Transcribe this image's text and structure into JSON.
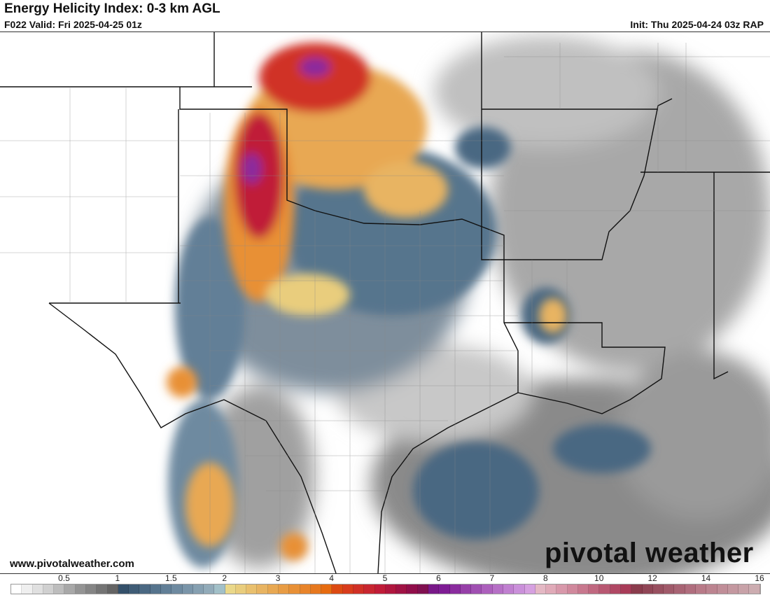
{
  "header": {
    "title": "Energy Helicity Index: 0-3 km AGL",
    "valid": "F022 Valid: Fri 2025-04-25 01z",
    "init": "Init: Thu 2025-04-24 03z RAP"
  },
  "footer": {
    "website": "www.pivotalweather.com",
    "logo": "pivotal weather"
  },
  "colorbar": {
    "ticks": [
      {
        "value": 0.5,
        "label": "0.5"
      },
      {
        "value": 1,
        "label": "1"
      },
      {
        "value": 1.5,
        "label": "1.5"
      },
      {
        "value": 2,
        "label": "2"
      },
      {
        "value": 3,
        "label": "3"
      },
      {
        "value": 4,
        "label": "4"
      },
      {
        "value": 5,
        "label": "5"
      },
      {
        "value": 6,
        "label": "6"
      },
      {
        "value": 7,
        "label": "7"
      },
      {
        "value": 8,
        "label": "8"
      },
      {
        "value": 10,
        "label": "10"
      },
      {
        "value": 12,
        "label": "12"
      },
      {
        "value": 14,
        "label": "14"
      },
      {
        "value": 16,
        "label": "16"
      }
    ],
    "colors": [
      "#ffffff",
      "#efefef",
      "#e0e0e0",
      "#d0d0d0",
      "#bdbdbd",
      "#a8a8a8",
      "#949494",
      "#858585",
      "#747474",
      "#646464",
      "#34506a",
      "#3f5c76",
      "#4a6882",
      "#56748d",
      "#627f97",
      "#6e8aa0",
      "#7a95a9",
      "#86a0b1",
      "#92abb9",
      "#a2c0c8",
      "#ead88a",
      "#e9cd7d",
      "#e9c06e",
      "#e8b462",
      "#e8a852",
      "#e89c44",
      "#e89036",
      "#e8842a",
      "#e6781e",
      "#e66b10",
      "#dc4a12",
      "#d83c1c",
      "#d03026",
      "#c82630",
      "#c01c38",
      "#b0163e",
      "#a01244",
      "#900e4a",
      "#801050",
      "#781888",
      "#7e1c94",
      "#8a2c9e",
      "#9640a8",
      "#a050b2",
      "#ac60bc",
      "#b670c6",
      "#c080d0",
      "#ca90da",
      "#d6a0e0",
      "#e4b8c4",
      "#e0aab8",
      "#d898aa",
      "#d0889c",
      "#c8788e",
      "#c06880",
      "#b85872",
      "#b04864",
      "#a83c58",
      "#8a3c4c",
      "#904656",
      "#985060",
      "#a05a6a",
      "#a86474",
      "#b06e7e",
      "#b87a88",
      "#bc8490",
      "#c08e98",
      "#c498a0",
      "#c8a2a8",
      "#ccacb0"
    ],
    "range": [
      0,
      16
    ]
  },
  "map": {
    "region": "Southern Plains / Texas / Gulf Coast",
    "accent_colors": {
      "high": "#8a2c9e",
      "mid": "#d03026",
      "low": "#e8a852",
      "blue": "#4a6882",
      "gray": "#8a8a8a"
    }
  }
}
